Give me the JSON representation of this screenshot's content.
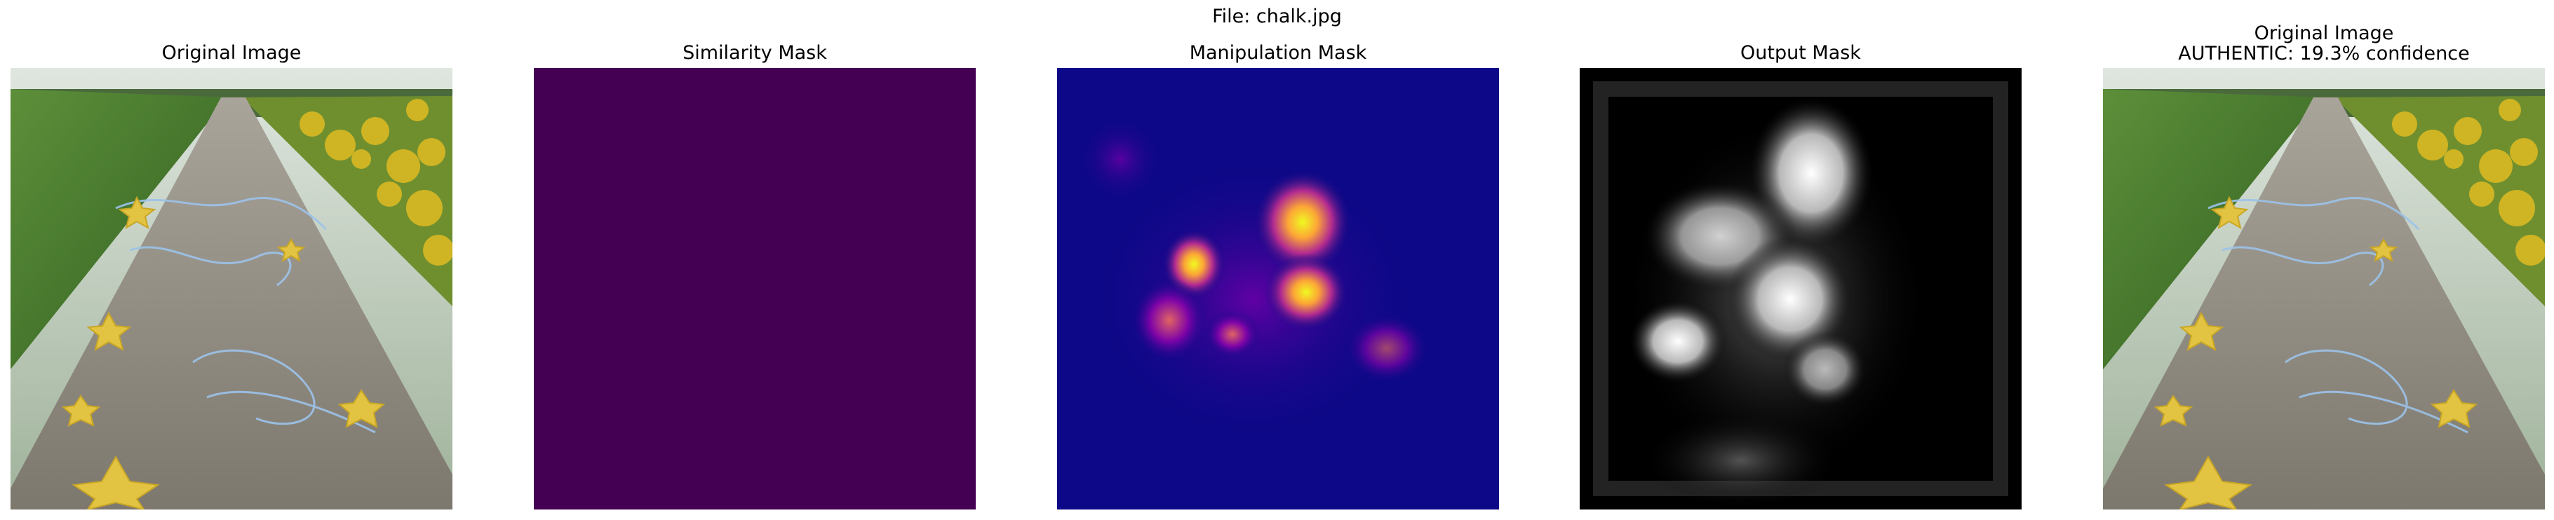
{
  "figure": {
    "suptitle": "File: chalk.jpg"
  },
  "panels": [
    {
      "title": "Original Image"
    },
    {
      "title": "Similarity Mask"
    },
    {
      "title": "Manipulation Mask"
    },
    {
      "title": "Output Mask"
    },
    {
      "title_line1": "Original Image",
      "title_line2": "AUTHENTIC: 19.3% confidence"
    }
  ],
  "colors": {
    "similarity_fill": "#440154",
    "manipulation_bg": "#0d0887",
    "output_bg": "#000000",
    "grass": "#3f7a2a",
    "path": "#8f8a80",
    "star_yellow": "#e8c53a",
    "chalk_blue": "#7fb6e8",
    "flowers": "#d9b421",
    "sky": "#cfd8cf"
  }
}
